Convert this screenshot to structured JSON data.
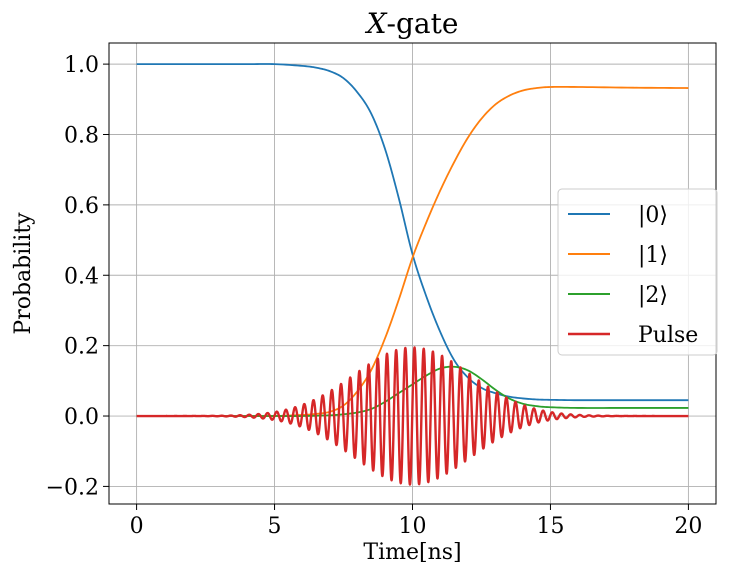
{
  "chart_data": {
    "type": "line",
    "title": "X-gate",
    "title_italic_part": "X",
    "title_rest": "-gate",
    "xlabel": "Time[ns]",
    "ylabel": "Probability",
    "xlim": [
      -1,
      21
    ],
    "ylim": [
      -0.25,
      1.06
    ],
    "xticks": [
      0,
      5,
      10,
      15,
      20
    ],
    "yticks": [
      -0.2,
      0.0,
      0.2,
      0.4,
      0.6,
      0.8,
      1.0
    ],
    "xtick_labels": [
      "0",
      "5",
      "10",
      "15",
      "20"
    ],
    "ytick_labels": [
      "−0.2",
      "0.0",
      "0.2",
      "0.4",
      "0.6",
      "0.8",
      "1.0"
    ],
    "grid": true,
    "legend_position": "center-right",
    "series": [
      {
        "name": "|0⟩",
        "color": "#1f77b4",
        "x": [
          0,
          2,
          4,
          5,
          6,
          6.5,
          7,
          7.5,
          8,
          8.5,
          9,
          9.5,
          10,
          10.5,
          11,
          11.5,
          12,
          12.5,
          13,
          13.5,
          14,
          14.5,
          15,
          16,
          18,
          20
        ],
        "y": [
          1.0,
          1.0,
          1.0,
          1.0,
          0.995,
          0.99,
          0.98,
          0.96,
          0.92,
          0.86,
          0.76,
          0.62,
          0.46,
          0.34,
          0.24,
          0.16,
          0.11,
          0.08,
          0.065,
          0.055,
          0.05,
          0.047,
          0.046,
          0.045,
          0.045,
          0.045
        ]
      },
      {
        "name": "|1⟩",
        "color": "#ff7f0e",
        "x": [
          0,
          2,
          4,
          5,
          6,
          6.5,
          7,
          7.5,
          8,
          8.5,
          9,
          9.5,
          10,
          10.5,
          11,
          11.5,
          12,
          12.5,
          13,
          13.5,
          14,
          14.5,
          15,
          16,
          18,
          20
        ],
        "y": [
          0.0,
          0.0,
          0.0,
          0.0,
          0.003,
          0.006,
          0.012,
          0.03,
          0.07,
          0.13,
          0.22,
          0.33,
          0.45,
          0.55,
          0.64,
          0.72,
          0.79,
          0.845,
          0.885,
          0.91,
          0.925,
          0.932,
          0.935,
          0.935,
          0.933,
          0.932
        ]
      },
      {
        "name": "|2⟩",
        "color": "#2ca02c",
        "x": [
          0,
          2,
          4,
          5,
          6,
          7,
          7.5,
          8,
          8.5,
          9,
          9.5,
          10,
          10.5,
          11,
          11.5,
          12,
          12.5,
          13,
          13.5,
          14,
          14.5,
          15,
          16,
          18,
          20
        ],
        "y": [
          0.0,
          0.0,
          0.0,
          0.0,
          0.0,
          0.002,
          0.005,
          0.01,
          0.02,
          0.04,
          0.065,
          0.09,
          0.115,
          0.135,
          0.14,
          0.13,
          0.105,
          0.075,
          0.05,
          0.035,
          0.028,
          0.025,
          0.023,
          0.023,
          0.023
        ]
      },
      {
        "name": "Pulse",
        "color": "#d62728",
        "amplitude": 0.195,
        "center": 10,
        "sigma": 2.1,
        "period": 0.333,
        "x_range": [
          0,
          20
        ]
      }
    ]
  }
}
